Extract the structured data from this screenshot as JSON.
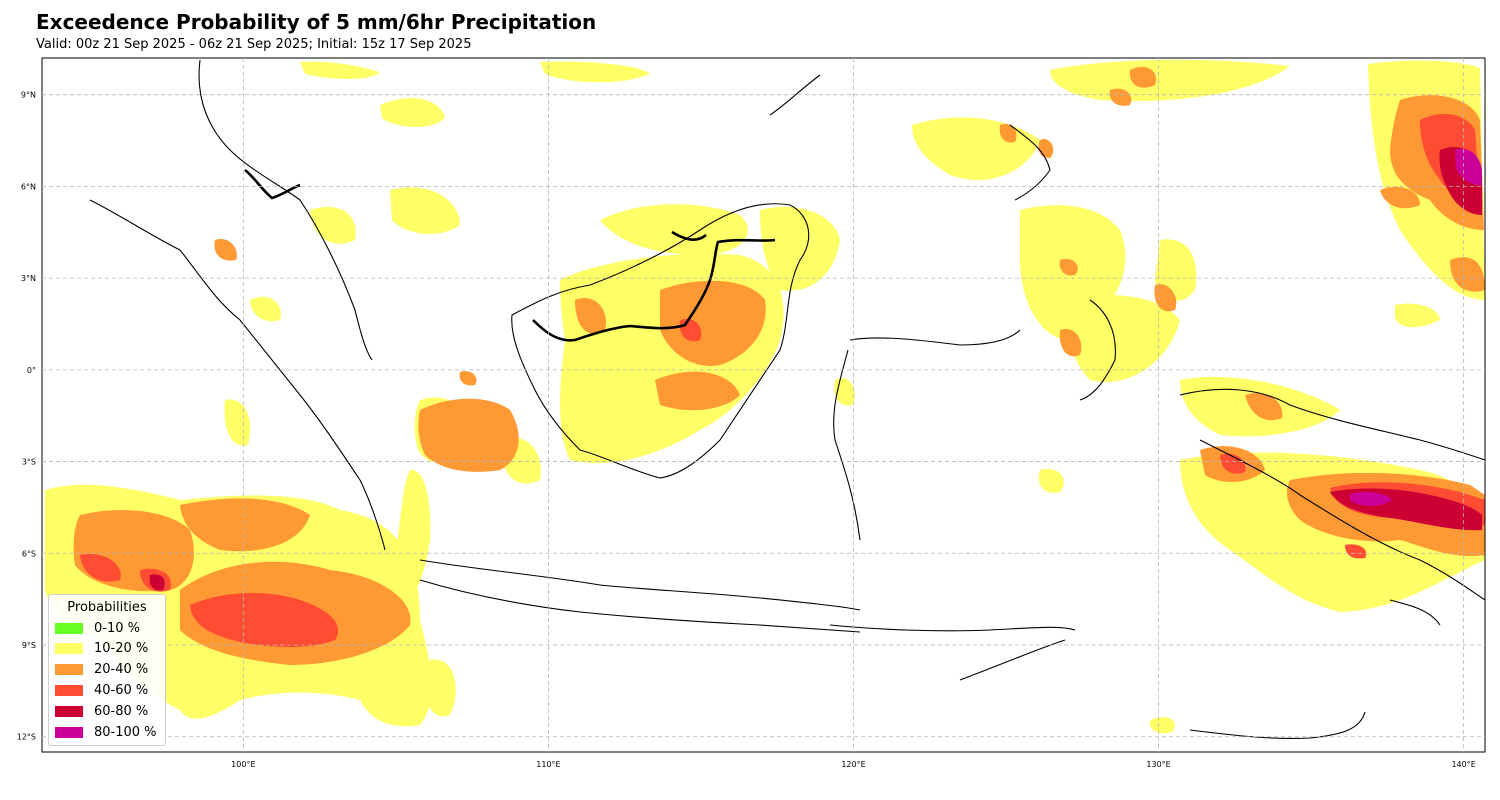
{
  "header": {
    "title": "Exceedence Probability of 5 mm/6hr Precipitation",
    "subtitle": "Valid: 00z 21 Sep 2025 - 06z 21 Sep 2025; Initial: 15z 17 Sep 2025"
  },
  "map": {
    "extent": {
      "lon": [
        93.4,
        140.7
      ],
      "lat": [
        -12.5,
        10.2
      ]
    },
    "lat_ticks": [
      {
        "value": 9,
        "label": "9°N"
      },
      {
        "value": 6,
        "label": "6°N"
      },
      {
        "value": 3,
        "label": "3°N"
      },
      {
        "value": 0,
        "label": "0°"
      },
      {
        "value": -3,
        "label": "3°S"
      },
      {
        "value": -6,
        "label": "6°S"
      },
      {
        "value": -9,
        "label": "9°S"
      },
      {
        "value": -12,
        "label": "12°S"
      }
    ],
    "lon_ticks": [
      {
        "value": 100,
        "label": "100°E"
      },
      {
        "value": 110,
        "label": "110°E"
      },
      {
        "value": 120,
        "label": "120°E"
      },
      {
        "value": 130,
        "label": "130°E"
      },
      {
        "value": 140,
        "label": "140°E"
      }
    ],
    "gridlines": true
  },
  "legend": {
    "title": "Probabilities",
    "items": [
      {
        "label": "0-10 %",
        "color": "#66ff22"
      },
      {
        "label": "10-20 %",
        "color": "#ffff66"
      },
      {
        "label": "20-40 %",
        "color": "#ff9933"
      },
      {
        "label": "40-60 %",
        "color": "#ff4c33"
      },
      {
        "label": "60-80 %",
        "color": "#cc0033"
      },
      {
        "label": "80-100 %",
        "color": "#cc0099"
      }
    ]
  }
}
